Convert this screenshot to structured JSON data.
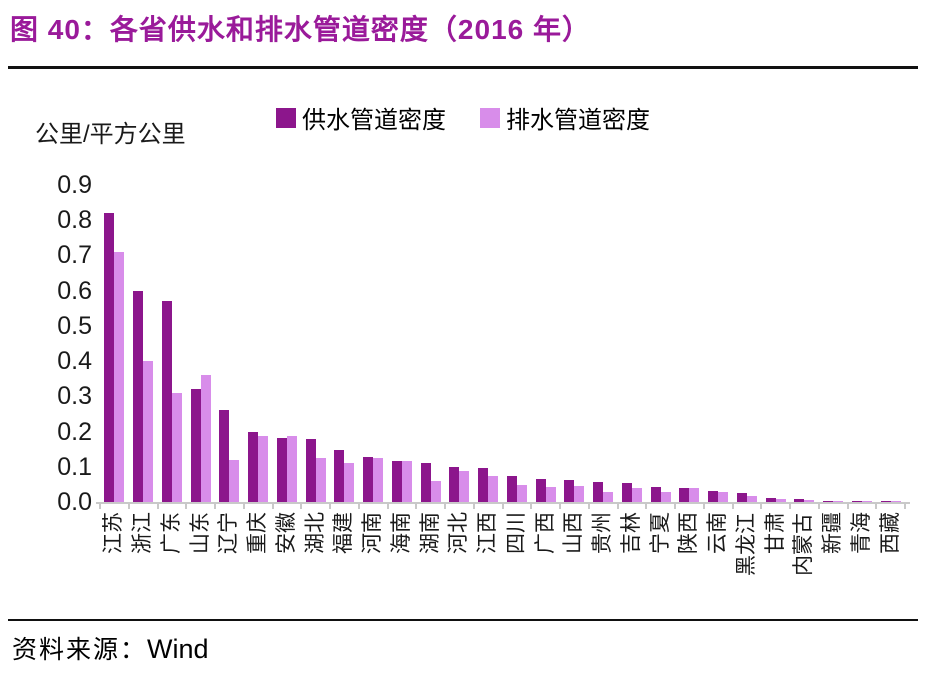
{
  "header": {
    "title": "图 40：各省供水和排水管道密度（2016 年）"
  },
  "footer": {
    "source_label": "资料来源：",
    "source_value": "Wind"
  },
  "chart_data": {
    "type": "bar",
    "title": "各省供水和排水管道密度（2016 年）",
    "unit_label": "公里/平方公里",
    "xlabel": "",
    "ylabel": "公里/平方公里",
    "ylim": [
      0,
      0.9
    ],
    "ytick_labels": [
      "0.0",
      "0.1",
      "0.2",
      "0.3",
      "0.4",
      "0.5",
      "0.6",
      "0.7",
      "0.8",
      "0.9"
    ],
    "grid": false,
    "legend_position": "top",
    "categories": [
      "江苏",
      "浙江",
      "广东",
      "山东",
      "辽宁",
      "重庆",
      "安徽",
      "湖北",
      "福建",
      "河南",
      "海南",
      "湖南",
      "河北",
      "江西",
      "四川",
      "广西",
      "山西",
      "贵州",
      "吉林",
      "宁夏",
      "陕西",
      "云南",
      "黑龙江",
      "甘肃",
      "内蒙古",
      "新疆",
      "青海",
      "西藏"
    ],
    "series": [
      {
        "name": "供水管道密度",
        "color": "#8C168C",
        "values": [
          0.82,
          0.6,
          0.57,
          0.32,
          0.26,
          0.2,
          0.183,
          0.178,
          0.148,
          0.129,
          0.117,
          0.11,
          0.1,
          0.097,
          0.074,
          0.065,
          0.063,
          0.058,
          0.055,
          0.043,
          0.041,
          0.03,
          0.025,
          0.011,
          0.008,
          0.004,
          0.003,
          0.001
        ]
      },
      {
        "name": "排水管道密度",
        "color": "#D88DEA",
        "values": [
          0.71,
          0.4,
          0.31,
          0.36,
          0.118,
          0.186,
          0.188,
          0.124,
          0.11,
          0.124,
          0.115,
          0.06,
          0.088,
          0.075,
          0.048,
          0.044,
          0.046,
          0.029,
          0.039,
          0.027,
          0.039,
          0.029,
          0.018,
          0.009,
          0.006,
          0.003,
          0.002,
          0.001
        ]
      }
    ]
  }
}
